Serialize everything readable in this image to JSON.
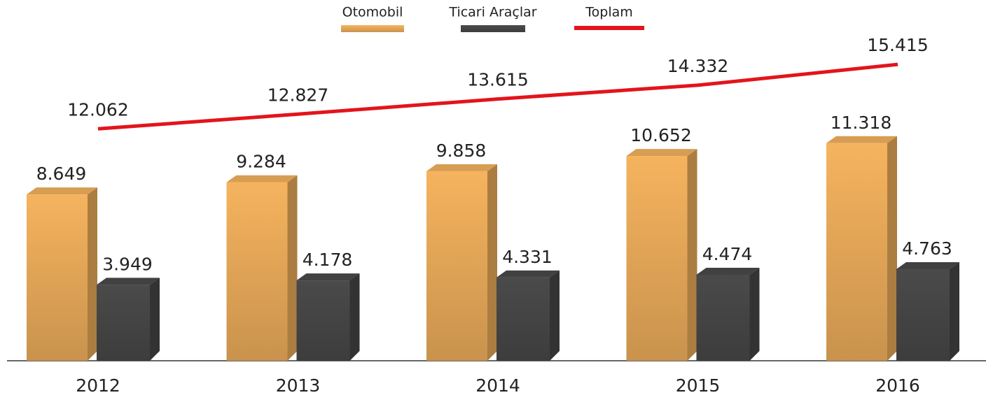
{
  "chart_data": {
    "type": "bar",
    "categories": [
      "2012",
      "2013",
      "2014",
      "2015",
      "2016"
    ],
    "series": [
      {
        "name": "Otomobil",
        "color": "#f5b35e",
        "values": [
          8.649,
          9.284,
          9.858,
          10.652,
          11.318
        ]
      },
      {
        "name": "Ticari Araçlar",
        "color": "#4a4a4a",
        "values": [
          3.949,
          4.178,
          4.331,
          4.474,
          4.763
        ]
      },
      {
        "name": "Toplam",
        "color": "#e3141c",
        "type": "line",
        "values": [
          12.062,
          12.827,
          13.615,
          14.332,
          15.415
        ]
      }
    ]
  }
}
